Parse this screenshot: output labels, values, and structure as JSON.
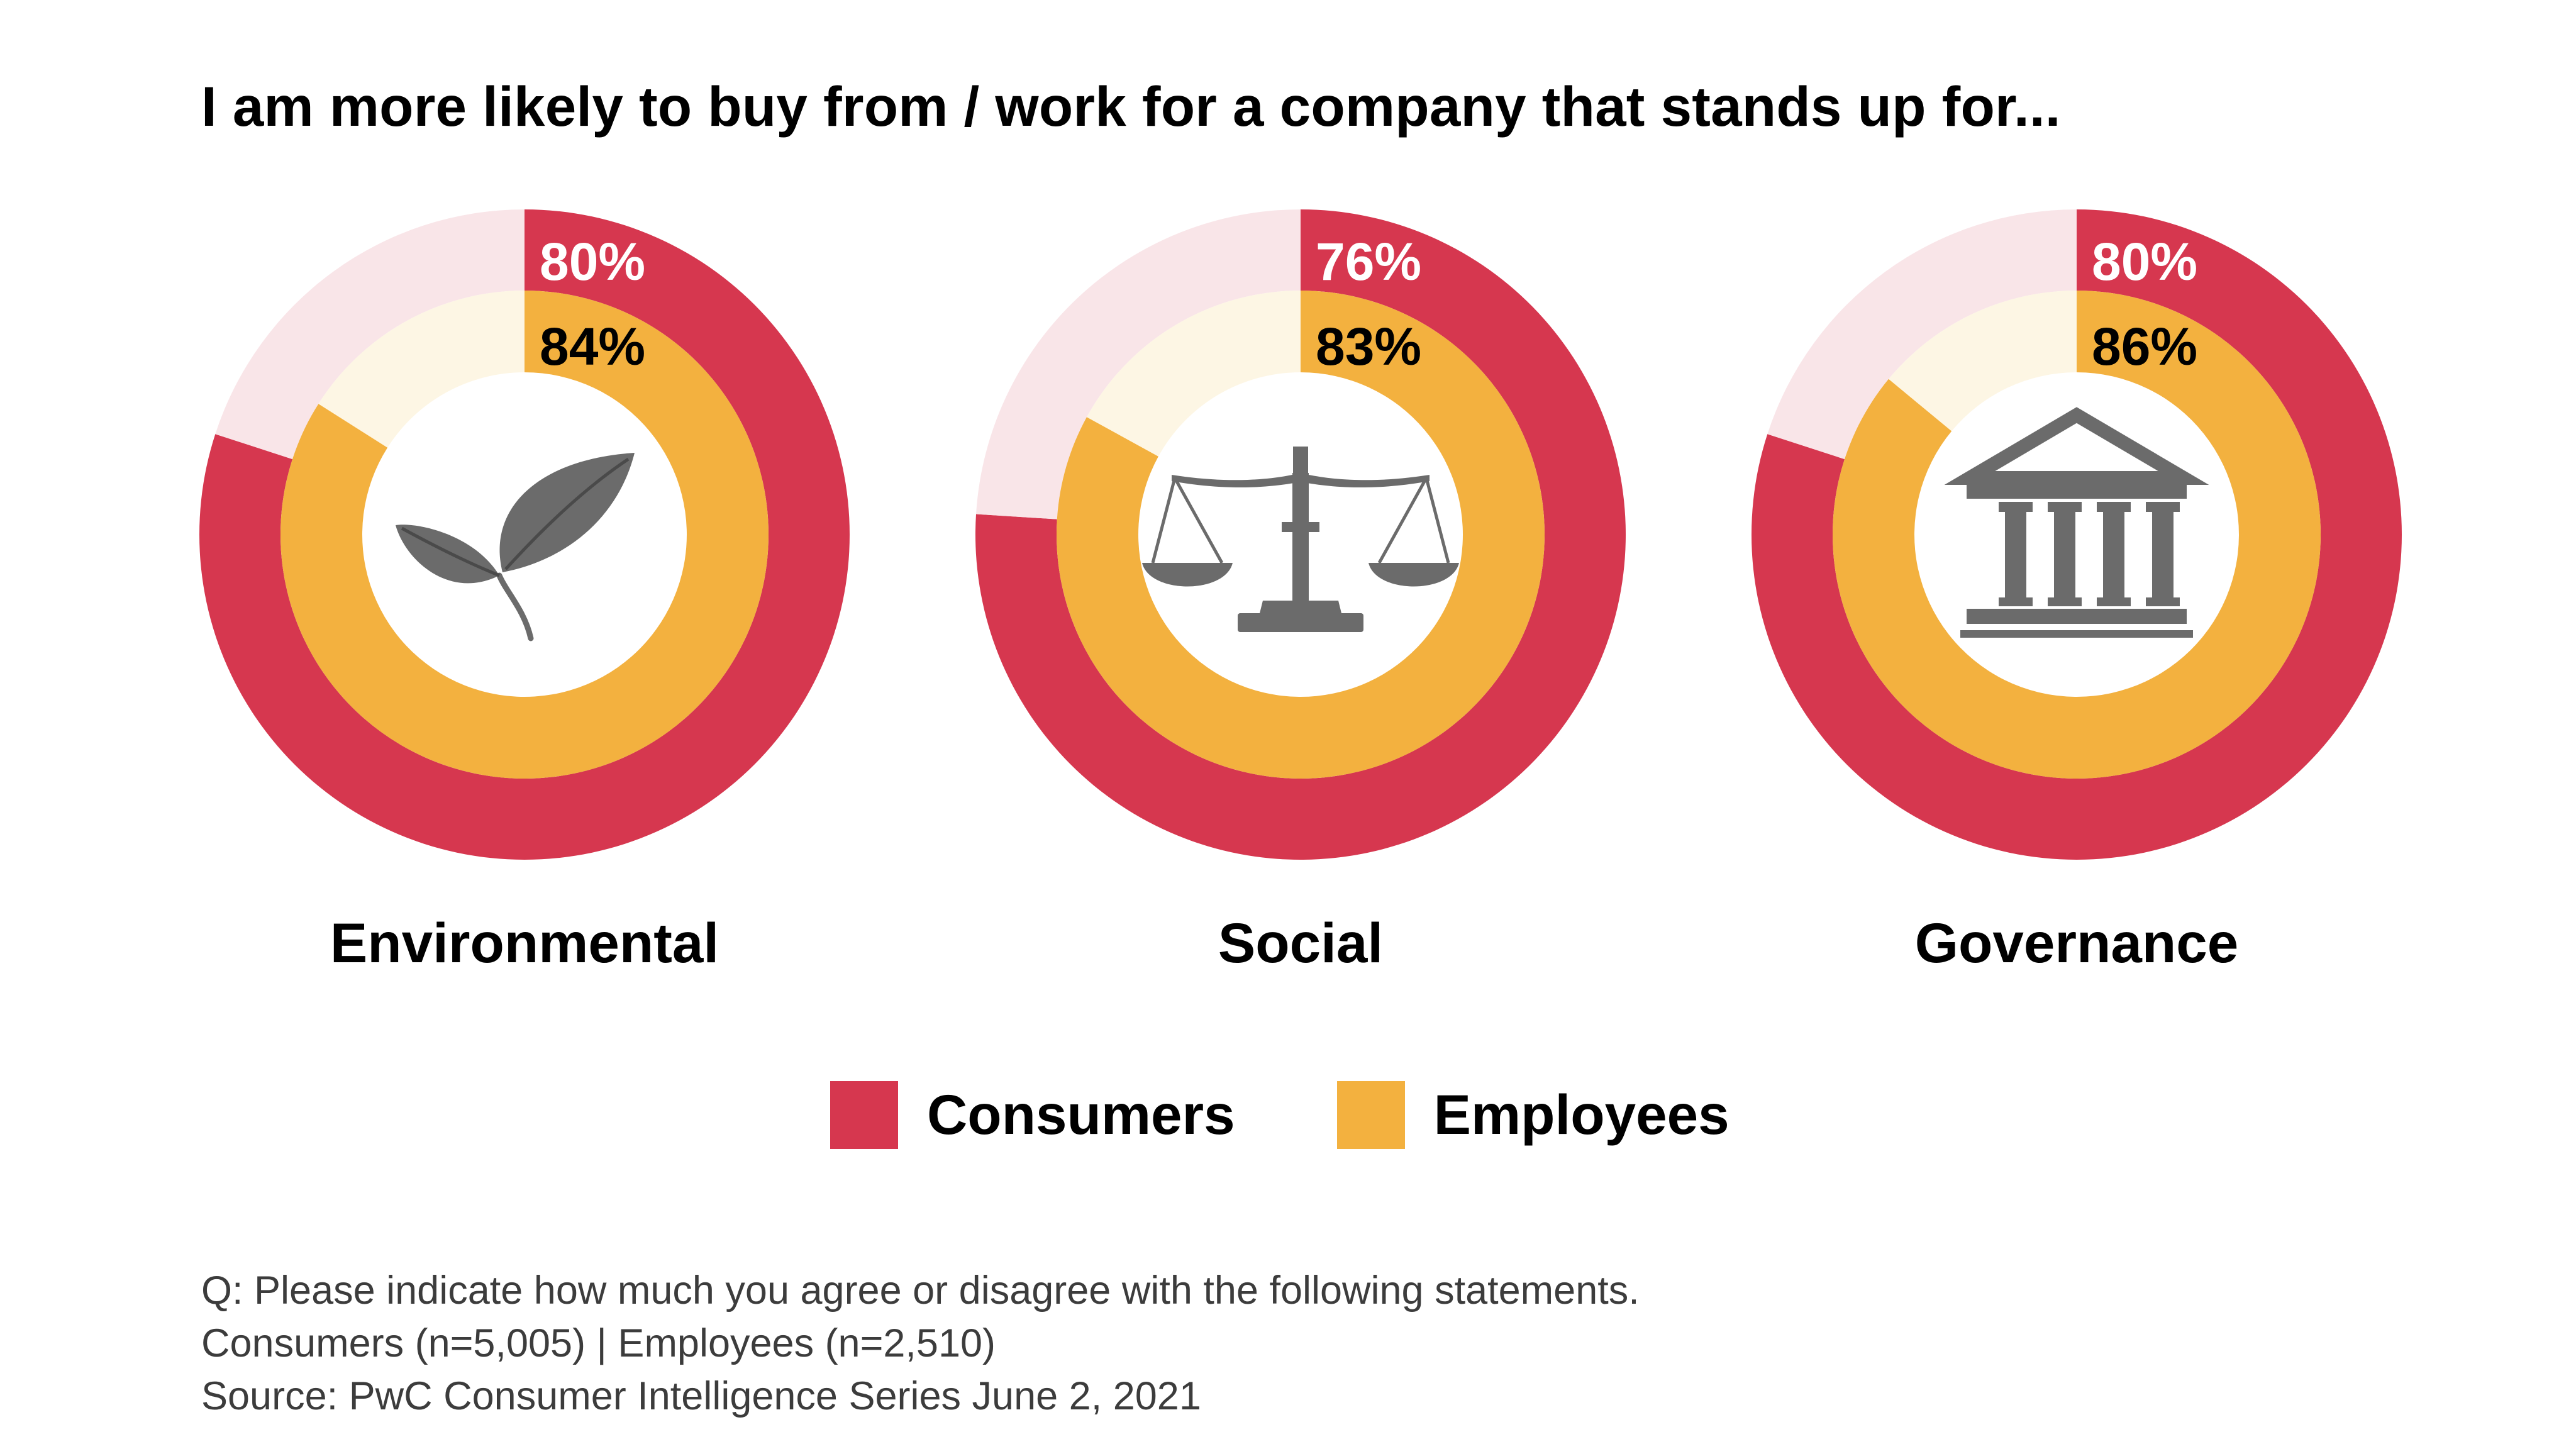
{
  "title": "I am more likely to buy from / work for a company that stands up for...",
  "colors": {
    "consumers": "#d6374f",
    "employees": "#f3b13f",
    "consumers_remainder": "#f9e5e8",
    "employees_remainder": "#fdf6e4",
    "icon": "#6b6b6b"
  },
  "chart_data": {
    "type": "donut",
    "title": "I am more likely to buy from / work for a company that stands up for...",
    "categories": [
      "Environmental",
      "Social",
      "Governance"
    ],
    "icons": [
      "leaf-icon",
      "scales-of-justice-icon",
      "government-building-icon"
    ],
    "series": [
      {
        "name": "Consumers",
        "values": [
          80,
          76,
          80
        ],
        "ring": "outer"
      },
      {
        "name": "Employees",
        "values": [
          84,
          83,
          86
        ],
        "ring": "inner"
      }
    ],
    "unit": "%",
    "legend_position": "bottom-center"
  },
  "legend": [
    {
      "label": "Consumers",
      "color": "#d6374f"
    },
    {
      "label": "Employees",
      "color": "#f3b13f"
    }
  ],
  "footnote": {
    "question": "Q: Please indicate how much you agree or disagree with the following statements.",
    "sample": "Consumers (n=5,005) | Employees (n=2,510)",
    "source": "Source: PwC Consumer Intelligence Series June 2, 2021"
  }
}
